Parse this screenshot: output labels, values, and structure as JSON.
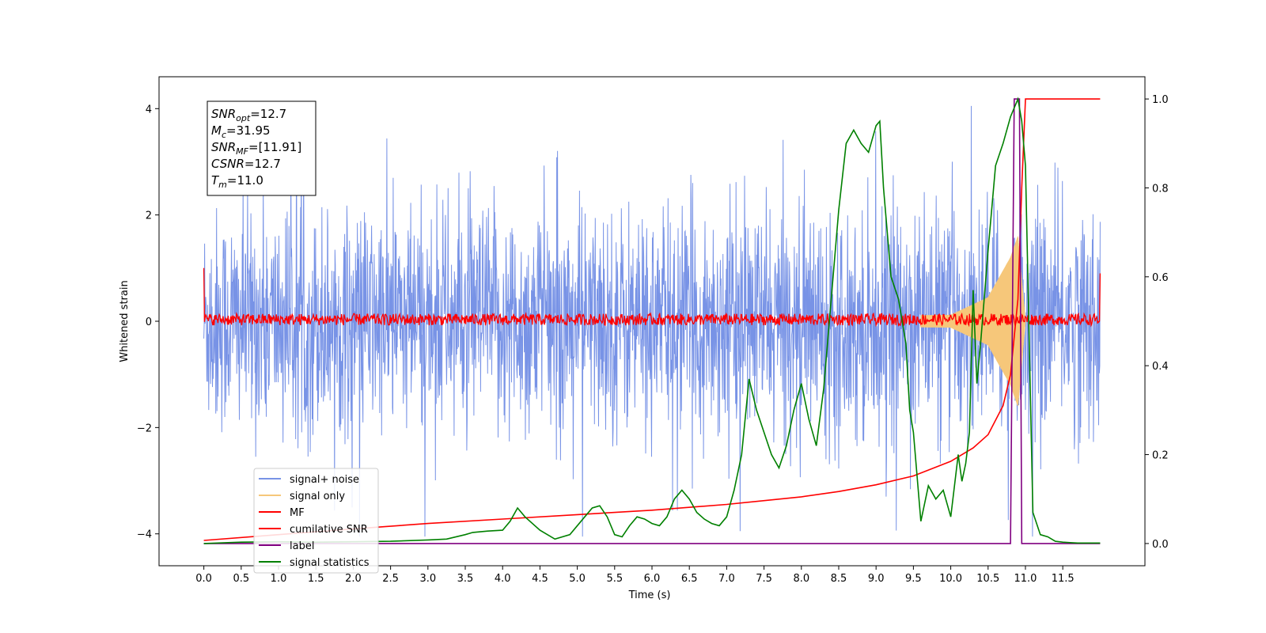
{
  "chart_data": {
    "type": "line",
    "xlabel": "Time (s)",
    "ylabel": "Whitened strain",
    "xlim": [
      -0.6,
      12.6
    ],
    "ylim_left": [
      -4.6,
      4.6
    ],
    "ylim_right": [
      -0.05,
      1.05
    ],
    "x_ticks": [
      0.0,
      0.5,
      1.0,
      1.5,
      2.0,
      2.5,
      3.0,
      3.5,
      4.0,
      4.5,
      5.0,
      5.5,
      6.0,
      6.5,
      7.0,
      7.5,
      8.0,
      8.5,
      9.0,
      9.5,
      10.0,
      10.5,
      11.0,
      11.5
    ],
    "x_tick_labels": [
      "0.0",
      "0.5",
      "1.0",
      "1.5",
      "2.0",
      "2.5",
      "3.0",
      "3.5",
      "4.0",
      "4.5",
      "5.0",
      "5.5",
      "6.0",
      "6.5",
      "7.0",
      "7.5",
      "8.0",
      "8.5",
      "9.0",
      "9.5",
      "10.0",
      "10.5",
      "11.0",
      "11.5"
    ],
    "y_left_ticks": [
      -4,
      -2,
      0,
      2,
      4
    ],
    "y_left_tick_labels": [
      "−4",
      "−2",
      "0",
      "2",
      "4"
    ],
    "y_right_ticks": [
      0.0,
      0.2,
      0.4,
      0.6,
      0.8,
      1.0
    ],
    "y_right_tick_labels": [
      "0.0",
      "0.2",
      "0.4",
      "0.6",
      "0.8",
      "1.0"
    ],
    "legend_position": "lower-left",
    "annotation": {
      "lines": [
        {
          "sym": "SNR",
          "sub": "opt",
          "val": "=12.7"
        },
        {
          "sym": "M",
          "sub": "c",
          "val": "=31.95"
        },
        {
          "sym": "SNR",
          "sub": "MF",
          "val": "=[11.91]"
        },
        {
          "sym": "CSNR",
          "sub": "",
          "val": "=12.7"
        },
        {
          "sym": "T",
          "sub": "m",
          "val": "=11.0"
        }
      ]
    },
    "series": [
      {
        "name": "signal+ noise",
        "color": "#7893e6",
        "axis": "left",
        "x_range": [
          0.0,
          12.0
        ],
        "envelope": {
          "typical": 1.9,
          "peak": 4.05
        }
      },
      {
        "name": "signal only",
        "color": "#f6c77a",
        "axis": "left",
        "chirp": {
          "x": [
            0.0,
            10.0,
            10.5,
            10.8,
            10.9,
            11.0
          ],
          "amplitude": [
            0.02,
            0.12,
            0.45,
            1.2,
            1.6,
            0.0
          ]
        }
      },
      {
        "name": "MF",
        "color": "#ff0000",
        "axis": "left",
        "x_range": [
          0.0,
          12.0
        ],
        "baseline": 0.0,
        "noise_band": [
          -0.1,
          0.25
        ],
        "endpoints": {
          "start": 1.0,
          "end": 0.9
        }
      },
      {
        "name": "cumilative SNR",
        "color": "#ff0000",
        "axis": "right",
        "x": [
          0.0,
          1.0,
          2.0,
          3.0,
          4.0,
          5.0,
          6.0,
          7.0,
          8.0,
          8.5,
          9.0,
          9.5,
          10.0,
          10.3,
          10.5,
          10.7,
          10.8,
          10.9,
          10.95,
          11.0,
          12.0
        ],
        "y": [
          0.007,
          0.02,
          0.033,
          0.045,
          0.055,
          0.065,
          0.075,
          0.088,
          0.105,
          0.117,
          0.132,
          0.152,
          0.185,
          0.215,
          0.245,
          0.31,
          0.38,
          0.55,
          0.8,
          1.0,
          1.0
        ]
      },
      {
        "name": "label",
        "color": "#800080",
        "axis": "right",
        "x": [
          0.0,
          10.8,
          10.85,
          10.92,
          10.95,
          11.0,
          12.0
        ],
        "y": [
          0.0,
          0.0,
          1.0,
          1.0,
          0.0,
          0.0,
          0.0
        ]
      },
      {
        "name": "signal statistics",
        "color": "#008000",
        "axis": "right",
        "x": [
          0.0,
          0.5,
          1.0,
          1.5,
          2.0,
          2.5,
          3.0,
          3.25,
          3.5,
          3.6,
          3.8,
          4.0,
          4.1,
          4.2,
          4.3,
          4.5,
          4.7,
          4.9,
          5.1,
          5.2,
          5.3,
          5.4,
          5.5,
          5.6,
          5.7,
          5.8,
          5.9,
          6.0,
          6.1,
          6.2,
          6.3,
          6.4,
          6.5,
          6.6,
          6.7,
          6.8,
          6.9,
          7.0,
          7.1,
          7.2,
          7.3,
          7.4,
          7.5,
          7.6,
          7.7,
          7.8,
          7.9,
          8.0,
          8.1,
          8.2,
          8.3,
          8.4,
          8.5,
          8.6,
          8.7,
          8.8,
          8.9,
          9.0,
          9.05,
          9.1,
          9.2,
          9.3,
          9.4,
          9.45,
          9.5,
          9.6,
          9.7,
          9.8,
          9.9,
          10.0,
          10.1,
          10.15,
          10.2,
          10.25,
          10.3,
          10.35,
          10.4,
          10.5,
          10.6,
          10.7,
          10.8,
          10.85,
          10.9,
          10.95,
          11.0,
          11.1,
          11.2,
          11.3,
          11.4,
          11.5,
          11.6,
          11.7,
          11.8,
          11.9,
          12.0
        ],
        "y": [
          0.0,
          0.003,
          0.004,
          0.003,
          0.004,
          0.005,
          0.008,
          0.01,
          0.02,
          0.025,
          0.028,
          0.03,
          0.05,
          0.08,
          0.06,
          0.03,
          0.01,
          0.02,
          0.06,
          0.08,
          0.085,
          0.06,
          0.02,
          0.015,
          0.04,
          0.06,
          0.055,
          0.045,
          0.04,
          0.06,
          0.1,
          0.12,
          0.1,
          0.07,
          0.055,
          0.045,
          0.04,
          0.06,
          0.12,
          0.2,
          0.37,
          0.3,
          0.25,
          0.2,
          0.17,
          0.22,
          0.3,
          0.36,
          0.28,
          0.22,
          0.35,
          0.55,
          0.75,
          0.9,
          0.93,
          0.9,
          0.88,
          0.94,
          0.95,
          0.8,
          0.6,
          0.55,
          0.45,
          0.3,
          0.25,
          0.05,
          0.13,
          0.1,
          0.12,
          0.06,
          0.2,
          0.14,
          0.18,
          0.25,
          0.57,
          0.36,
          0.45,
          0.66,
          0.85,
          0.9,
          0.96,
          0.98,
          1.0,
          0.95,
          0.85,
          0.07,
          0.02,
          0.015,
          0.005,
          0.003,
          0.002,
          0.001,
          0.001,
          0.001,
          0.001
        ]
      }
    ]
  }
}
